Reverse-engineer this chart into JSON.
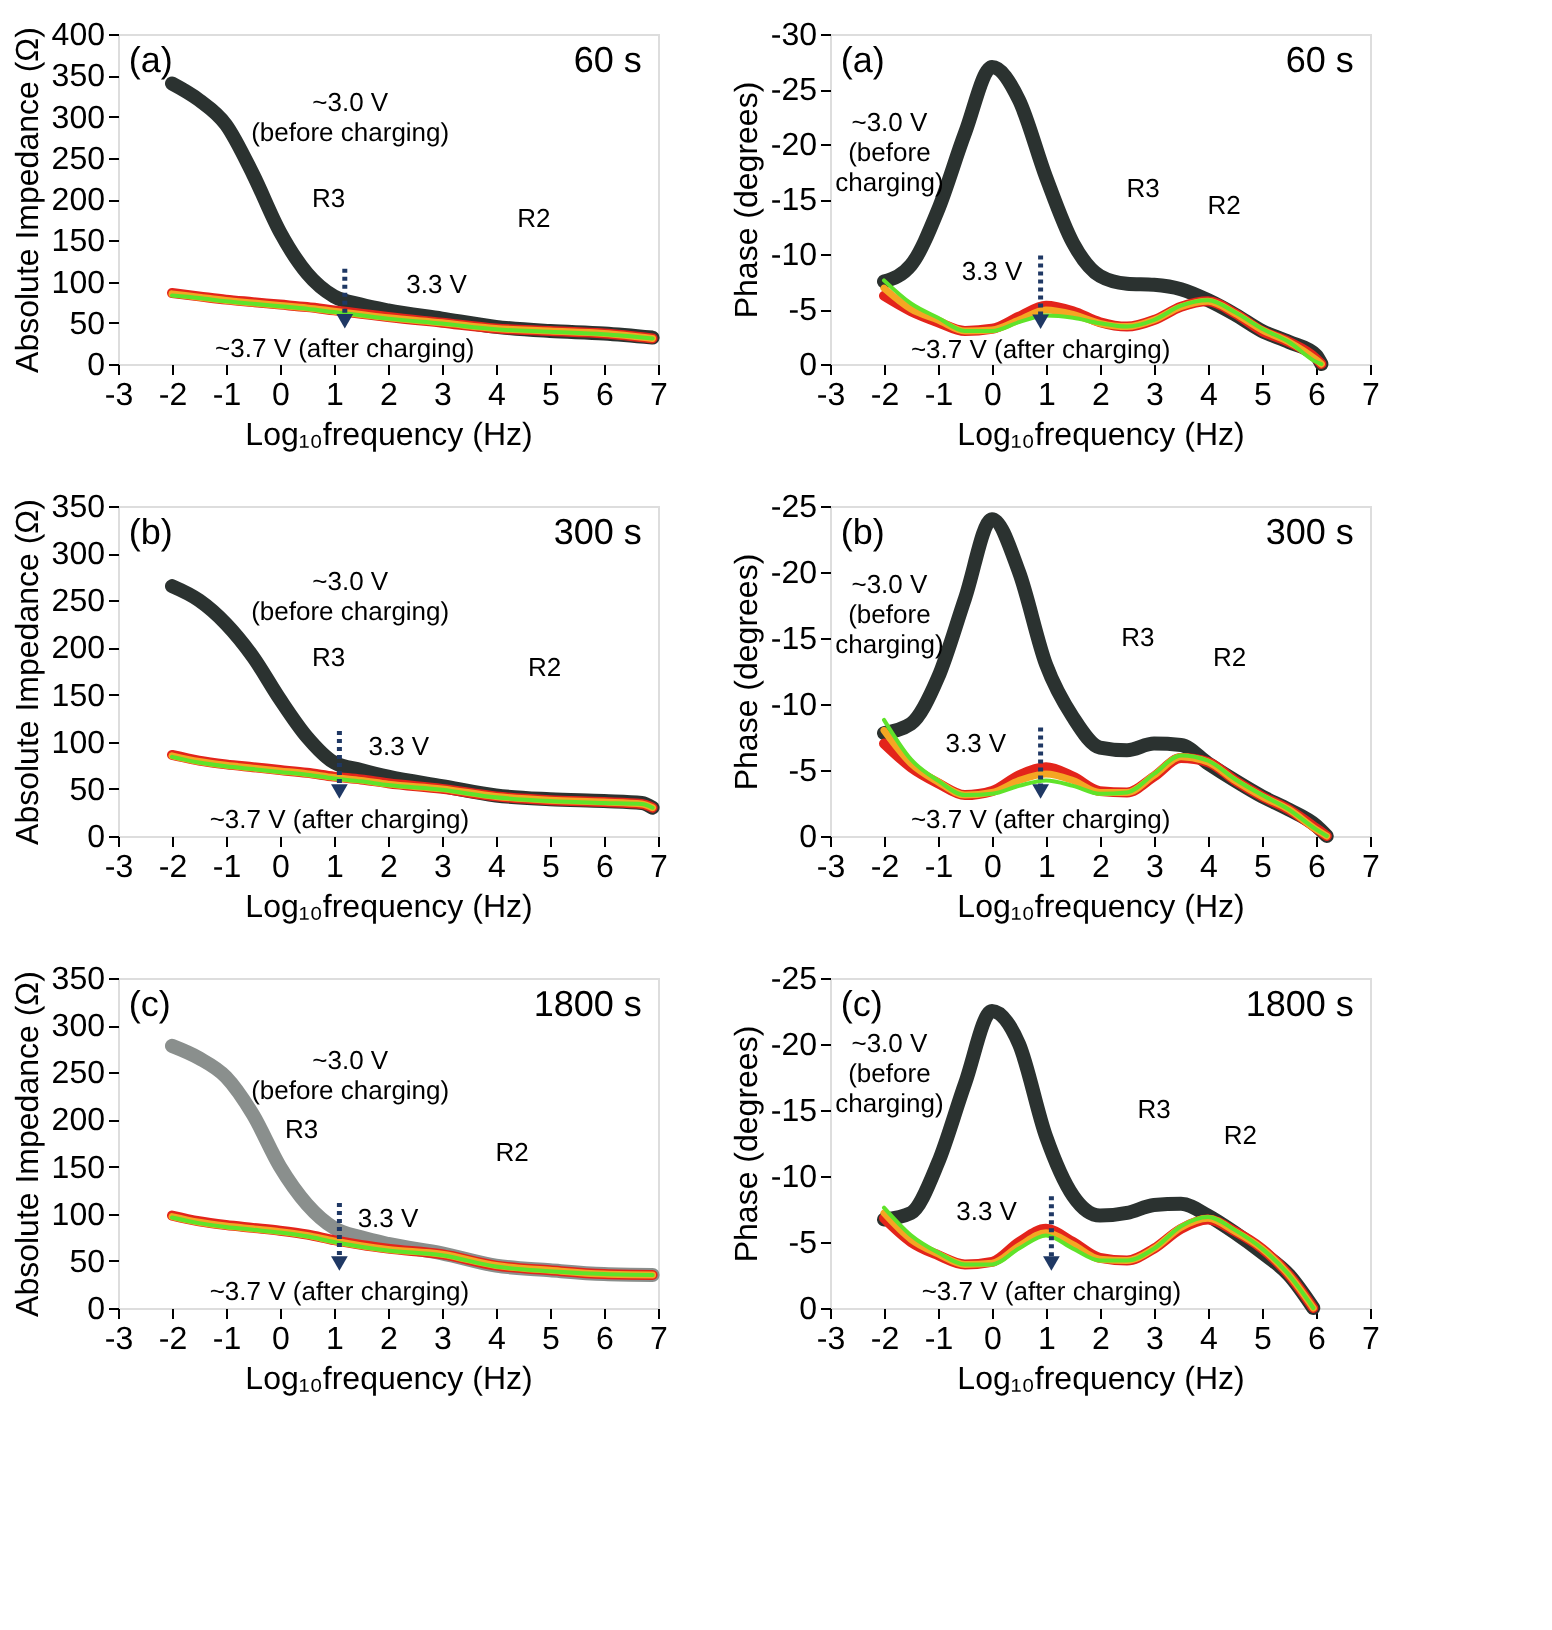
{
  "chart_data": [
    {
      "type": "line",
      "xlabel": "Log₁₀frequency (Hz)",
      "ylabel": "Absolute Impedance (Ω)",
      "xlim": [
        -3,
        7
      ],
      "xticks": [
        -3,
        -2,
        -1,
        0,
        1,
        2,
        3,
        4,
        5,
        6,
        7
      ],
      "ylim": [
        0,
        400
      ],
      "yticks": [
        0,
        50,
        100,
        150,
        200,
        250,
        300,
        350,
        400
      ],
      "grid": false,
      "marker": "none",
      "line_style": "solid",
      "x": [
        -2,
        -1.5,
        -1,
        -0.5,
        0,
        0.5,
        1,
        1.5,
        2,
        3,
        4,
        5,
        6,
        6.9
      ],
      "series": [
        {
          "color": "#2b3230",
          "values": [
            340,
            320,
            290,
            230,
            160,
            110,
            82,
            72,
            65,
            55,
            45,
            40,
            37,
            32
          ]
        },
        {
          "color": "#e3241b",
          "values": [
            86,
            82,
            78,
            75,
            72,
            69,
            65,
            61,
            57,
            50,
            43,
            40,
            37,
            31
          ]
        },
        {
          "color": "#f5a623",
          "values": [
            85,
            81,
            77,
            74,
            71,
            68,
            64,
            60,
            56,
            50,
            43,
            40,
            37,
            31
          ]
        },
        {
          "color": "#5fe32a",
          "values": [
            83,
            80,
            76,
            73,
            70,
            67,
            63,
            59,
            55,
            49,
            42,
            39,
            36,
            31
          ]
        }
      ],
      "annotations": [
        "(a)",
        "60 s",
        "~3.0 V\n(before charging)",
        "R3",
        "R2",
        "3.3 V",
        "~3.7 V (after charging)"
      ]
    },
    {
      "type": "line",
      "xlabel": "Log₁₀frequency (Hz)",
      "ylabel": "Phase (degrees)",
      "xlim": [
        -3,
        7
      ],
      "xticks": [
        -3,
        -2,
        -1,
        0,
        1,
        2,
        3,
        4,
        5,
        6,
        7
      ],
      "ylim": [
        0,
        -30
      ],
      "yticks": [
        0,
        -5,
        -10,
        -15,
        -20,
        -25,
        -30
      ],
      "grid": false,
      "marker": "none",
      "line_style": "solid",
      "x": [
        -2,
        -1.5,
        -1,
        -0.5,
        0,
        0.5,
        1,
        1.5,
        2,
        2.5,
        3,
        3.5,
        4,
        4.5,
        5,
        5.5,
        6,
        6.1
      ],
      "series": [
        {
          "color": "#2b3230",
          "values": [
            -7.5,
            -9,
            -14,
            -21,
            -27,
            -24,
            -17,
            -11,
            -8,
            -7.3,
            -7.2,
            -6.8,
            -5.8,
            -4.5,
            -3,
            -2,
            -0.8,
            0
          ]
        },
        {
          "color": "#e3241b",
          "values": [
            -6.2,
            -4.8,
            -3.8,
            -3,
            -3.2,
            -4.3,
            -5.3,
            -4.8,
            -3.8,
            -3.4,
            -4,
            -5.2,
            -5.7,
            -4.6,
            -3,
            -2,
            -0.5,
            0
          ]
        },
        {
          "color": "#f5a623",
          "values": [
            -6.9,
            -5,
            -4,
            -3,
            -3.1,
            -4,
            -4.9,
            -4.5,
            -3.7,
            -3.4,
            -4,
            -5.2,
            -5.7,
            -4.6,
            -3.1,
            -2,
            -0.4,
            0
          ]
        },
        {
          "color": "#5fe32a",
          "values": [
            -7.6,
            -5.5,
            -4.2,
            -3,
            -3,
            -3.8,
            -4.4,
            -4.2,
            -3.7,
            -3.4,
            -4,
            -5.3,
            -5.8,
            -4.7,
            -3.2,
            -2,
            -0.2,
            0
          ]
        }
      ],
      "annotations": [
        "(a)",
        "60 s",
        "~3.0 V\n(before\ncharging)",
        "R3",
        "R2",
        "3.3 V",
        "~3.7 V (after charging)"
      ]
    },
    {
      "type": "line",
      "xlabel": "Log₁₀frequency (Hz)",
      "ylabel": "Absolute Impedance (Ω)",
      "xlim": [
        -3,
        7
      ],
      "xticks": [
        -3,
        -2,
        -1,
        0,
        1,
        2,
        3,
        4,
        5,
        6,
        7
      ],
      "ylim": [
        0,
        350
      ],
      "yticks": [
        0,
        50,
        100,
        150,
        200,
        250,
        300,
        350
      ],
      "grid": false,
      "marker": "none",
      "line_style": "solid",
      "x": [
        -2,
        -1.5,
        -1,
        -0.5,
        0,
        0.5,
        1,
        1.5,
        2,
        3,
        4,
        5,
        6,
        6.7,
        6.9
      ],
      "series": [
        {
          "color": "#2b3230",
          "values": [
            265,
            250,
            225,
            190,
            145,
            105,
            78,
            70,
            63,
            53,
            43,
            39,
            37,
            35,
            30
          ]
        },
        {
          "color": "#e3241b",
          "values": [
            86,
            80,
            76,
            73,
            70,
            67,
            63,
            60,
            56,
            50,
            42,
            38,
            36,
            34,
            30
          ]
        },
        {
          "color": "#f5a623",
          "values": [
            85,
            79,
            75,
            72,
            69,
            66,
            62,
            59,
            55,
            50,
            42,
            38,
            36,
            34,
            30
          ]
        },
        {
          "color": "#5fe32a",
          "values": [
            84,
            78,
            74,
            71,
            68,
            65,
            61,
            58,
            54,
            49,
            41,
            37,
            35,
            34,
            30
          ]
        }
      ],
      "annotations": [
        "(b)",
        "300 s",
        "~3.0 V\n(before charging)",
        "R3",
        "R2",
        "3.3 V",
        "~3.7 V (after charging)"
      ]
    },
    {
      "type": "line",
      "xlabel": "Log₁₀frequency (Hz)",
      "ylabel": "Phase (degrees)",
      "xlim": [
        -3,
        7
      ],
      "xticks": [
        -3,
        -2,
        -1,
        0,
        1,
        2,
        3,
        4,
        5,
        6,
        7
      ],
      "ylim": [
        0,
        -25
      ],
      "yticks": [
        0,
        -5,
        -10,
        -15,
        -20,
        -25
      ],
      "grid": false,
      "marker": "none",
      "line_style": "solid",
      "x": [
        -2,
        -1.5,
        -1,
        -0.5,
        0,
        0.5,
        1,
        1.5,
        2,
        2.5,
        3,
        3.5,
        4,
        4.5,
        5,
        5.5,
        6,
        6.2
      ],
      "series": [
        {
          "color": "#2b3230",
          "values": [
            -7.8,
            -8.5,
            -12,
            -18,
            -24,
            -20,
            -13,
            -9,
            -6.7,
            -6.5,
            -7,
            -6.9,
            -5.5,
            -4.2,
            -3,
            -2,
            -0.8,
            0
          ]
        },
        {
          "color": "#e3241b",
          "values": [
            -7,
            -5.2,
            -4,
            -3.1,
            -3.4,
            -4.6,
            -5.2,
            -4.5,
            -3.4,
            -3.3,
            -4.5,
            -5.9,
            -5.6,
            -4.2,
            -3,
            -2,
            -0.6,
            0
          ]
        },
        {
          "color": "#f5a623",
          "values": [
            -8,
            -5.5,
            -4.1,
            -3.1,
            -3.3,
            -4.2,
            -4.7,
            -4.2,
            -3.3,
            -3.3,
            -4.6,
            -6,
            -5.6,
            -4.2,
            -3,
            -2,
            -0.5,
            0
          ]
        },
        {
          "color": "#5fe32a",
          "values": [
            -8.8,
            -5.8,
            -4.2,
            -3.1,
            -3.2,
            -3.8,
            -4.2,
            -3.8,
            -3.2,
            -3.3,
            -4.7,
            -6.1,
            -5.7,
            -4.3,
            -3.1,
            -2,
            -0.5,
            0
          ]
        }
      ],
      "annotations": [
        "(b)",
        "300 s",
        "~3.0 V\n(before\ncharging)",
        "R3",
        "R2",
        "3.3 V",
        "~3.7 V (after charging)"
      ]
    },
    {
      "type": "line",
      "xlabel": "Log₁₀frequency (Hz)",
      "ylabel": "Absolute Impedance (Ω)",
      "xlim": [
        -3,
        7
      ],
      "xticks": [
        -3,
        -2,
        -1,
        0,
        1,
        2,
        3,
        4,
        5,
        6,
        7
      ],
      "ylim": [
        0,
        350
      ],
      "yticks": [
        0,
        50,
        100,
        150,
        200,
        250,
        300,
        350
      ],
      "grid": false,
      "marker": "none",
      "line_style": "solid",
      "x": [
        -2,
        -1.5,
        -1,
        -0.5,
        0,
        0.5,
        1,
        1.5,
        2,
        3,
        4,
        5,
        6,
        6.9
      ],
      "series": [
        {
          "color": "#8a8f8d",
          "values": [
            278,
            265,
            245,
            205,
            150,
            110,
            85,
            75,
            68,
            58,
            45,
            40,
            36,
            35
          ]
        },
        {
          "color": "#e3241b",
          "values": [
            98,
            92,
            88,
            85,
            82,
            78,
            72,
            67,
            63,
            57,
            45,
            40,
            36,
            35
          ]
        },
        {
          "color": "#f5a623",
          "values": [
            97,
            91,
            87,
            84,
            81,
            77,
            71,
            66,
            62,
            57,
            45,
            40,
            36,
            35
          ]
        },
        {
          "color": "#5fe32a",
          "values": [
            96,
            90,
            86,
            83,
            80,
            76,
            70,
            65,
            61,
            56,
            44,
            39,
            36,
            35
          ]
        }
      ],
      "annotations": [
        "(c)",
        "1800 s",
        "~3.0 V\n(before charging)",
        "R3",
        "R2",
        "3.3 V",
        "~3.7 V (after charging)"
      ]
    },
    {
      "type": "line",
      "xlabel": "Log₁₀frequency (Hz)",
      "ylabel": "Phase (degrees)",
      "xlim": [
        -3,
        7
      ],
      "xticks": [
        -3,
        -2,
        -1,
        0,
        1,
        2,
        3,
        4,
        5,
        6,
        7
      ],
      "ylim": [
        0,
        -25
      ],
      "yticks": [
        0,
        -5,
        -10,
        -15,
        -20,
        -25
      ],
      "grid": false,
      "marker": "none",
      "line_style": "solid",
      "x": [
        -2,
        -1.5,
        -1,
        -0.5,
        0,
        0.5,
        1,
        1.5,
        2,
        2.5,
        3,
        3.5,
        4,
        4.5,
        5,
        5.5,
        5.95
      ],
      "series": [
        {
          "color": "#2b3230",
          "values": [
            -6.7,
            -7.2,
            -11,
            -17,
            -22.5,
            -20,
            -13,
            -8.5,
            -7,
            -7.2,
            -7.8,
            -7.9,
            -7,
            -5.7,
            -4.2,
            -2.5,
            0
          ]
        },
        {
          "color": "#e3241b",
          "values": [
            -6.8,
            -5,
            -4,
            -3.3,
            -3.5,
            -5,
            -6,
            -5,
            -3.8,
            -3.6,
            -4.5,
            -6,
            -6.7,
            -5.8,
            -4.5,
            -2.5,
            0
          ]
        },
        {
          "color": "#f5a623",
          "values": [
            -7.2,
            -5.2,
            -4.1,
            -3.3,
            -3.4,
            -4.7,
            -5.7,
            -4.8,
            -3.7,
            -3.6,
            -4.5,
            -6.1,
            -6.8,
            -5.8,
            -4.5,
            -2.5,
            0
          ]
        },
        {
          "color": "#5fe32a",
          "values": [
            -7.6,
            -5.5,
            -4.2,
            -3.3,
            -3.3,
            -4.5,
            -5.5,
            -4.5,
            -3.6,
            -3.6,
            -4.5,
            -6.2,
            -6.9,
            -5.9,
            -4.5,
            -2.5,
            0
          ]
        }
      ],
      "annotations": [
        "(c)",
        "1800 s",
        "~3.0 V\n(before\ncharging)",
        "R3",
        "R2",
        "3.3 V",
        "~3.7 V (after charging)"
      ]
    }
  ]
}
